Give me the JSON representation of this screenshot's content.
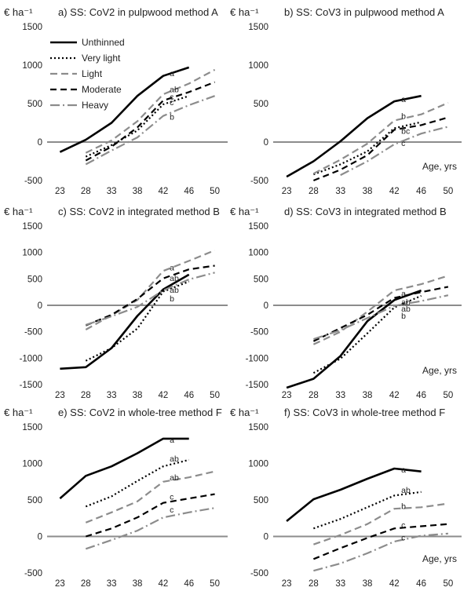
{
  "figure": {
    "ylabel": "€ ha⁻¹",
    "age_label": "Age, yrs"
  },
  "styles": {
    "Unthinned": {
      "color": "#000000",
      "dash": "none"
    },
    "Very light": {
      "color": "#000000",
      "dash": "2,3"
    },
    "Light": {
      "color": "#8c8c8c",
      "dash": "9,5"
    },
    "Moderate": {
      "color": "#000000",
      "dash": "8,5"
    },
    "Heavy": {
      "color": "#8c8c8c",
      "dash": "12,4,2,4"
    }
  },
  "chart_data": [
    {
      "type": "line",
      "title": "a) SS: CoV2 in pulpwood method A",
      "x_ticks": [
        23,
        28,
        33,
        38,
        42,
        46,
        50
      ],
      "y_ticks": [
        -500,
        0,
        500,
        1000,
        1500
      ],
      "ylim": [
        -500,
        1500
      ],
      "legend": {
        "placement": "top-left",
        "entries": [
          "Unthinned",
          "Very light",
          "Light",
          "Moderate",
          "Heavy"
        ]
      },
      "series": [
        {
          "name": "Unthinned",
          "x": [
            23,
            28,
            33,
            38,
            42,
            46
          ],
          "y": [
            -130,
            30,
            250,
            600,
            860,
            970
          ]
        },
        {
          "name": "Very light",
          "x": [
            28,
            33,
            38,
            42,
            46
          ],
          "y": [
            -190,
            -40,
            150,
            490,
            600
          ]
        },
        {
          "name": "Light",
          "x": [
            28,
            33,
            38,
            42,
            46,
            50
          ],
          "y": [
            -140,
            20,
            270,
            620,
            760,
            940
          ]
        },
        {
          "name": "Moderate",
          "x": [
            28,
            33,
            38,
            42,
            46,
            50
          ],
          "y": [
            -240,
            -60,
            190,
            540,
            650,
            780
          ]
        },
        {
          "name": "Heavy",
          "x": [
            28,
            33,
            38,
            42,
            46,
            50
          ],
          "y": [
            -290,
            -110,
            60,
            340,
            480,
            600
          ]
        }
      ],
      "annotations": [
        {
          "text": "a",
          "x": 43.5,
          "y": 900
        },
        {
          "text": "ab",
          "x": 43.5,
          "y": 690
        },
        {
          "text": "c",
          "x": 43.5,
          "y": 590
        },
        {
          "text": "c",
          "x": 43.5,
          "y": 520
        },
        {
          "text": "b",
          "x": 43.5,
          "y": 330
        }
      ]
    },
    {
      "type": "line",
      "title": "b) SS: CoV3 in pulpwood method A",
      "x_ticks": [
        23,
        28,
        33,
        38,
        42,
        46,
        50
      ],
      "y_ticks": [
        -500,
        0,
        500,
        1000,
        1500
      ],
      "ylim": [
        -500,
        1500
      ],
      "show_age_label": true,
      "series": [
        {
          "name": "Unthinned",
          "x": [
            23,
            28,
            33,
            38,
            42,
            46
          ],
          "y": [
            -450,
            -250,
            10,
            310,
            530,
            600
          ]
        },
        {
          "name": "Very light",
          "x": [
            28,
            33,
            38,
            42,
            46
          ],
          "y": [
            -420,
            -290,
            -120,
            180,
            260
          ]
        },
        {
          "name": "Light",
          "x": [
            28,
            33,
            38,
            42,
            46,
            50
          ],
          "y": [
            -410,
            -230,
            -20,
            280,
            360,
            510
          ]
        },
        {
          "name": "Moderate",
          "x": [
            28,
            33,
            38,
            42,
            46,
            50
          ],
          "y": [
            -500,
            -360,
            -170,
            160,
            220,
            320
          ]
        },
        {
          "name": "Heavy",
          "x": [
            33,
            38,
            42,
            46,
            50
          ],
          "y": [
            -430,
            -250,
            -30,
            110,
            200
          ]
        }
      ],
      "annotations": [
        {
          "text": "a",
          "x": 43.5,
          "y": 560
        },
        {
          "text": "b",
          "x": 43.5,
          "y": 340
        },
        {
          "text": "bc",
          "x": 43.5,
          "y": 150
        },
        {
          "text": "c",
          "x": 43.5,
          "y": -10
        }
      ]
    },
    {
      "type": "line",
      "title": "c) SS: CoV2 in integrated method B",
      "x_ticks": [
        23,
        28,
        33,
        38,
        42,
        46,
        50
      ],
      "y_ticks": [
        -1500,
        -1000,
        -500,
        0,
        500,
        1000,
        1500
      ],
      "ylim": [
        -1500,
        1500
      ],
      "series": [
        {
          "name": "Unthinned",
          "x": [
            23,
            28,
            33,
            38,
            42,
            46
          ],
          "y": [
            -1200,
            -1170,
            -810,
            -200,
            300,
            580
          ]
        },
        {
          "name": "Very light",
          "x": [
            28,
            33,
            38,
            42,
            46
          ],
          "y": [
            -1050,
            -810,
            -440,
            260,
            450
          ]
        },
        {
          "name": "Light",
          "x": [
            28,
            33,
            38,
            42,
            46,
            50
          ],
          "y": [
            -460,
            -190,
            100,
            650,
            840,
            1040
          ]
        },
        {
          "name": "Moderate",
          "x": [
            28,
            33,
            38,
            42,
            46,
            50
          ],
          "y": [
            -380,
            -180,
            120,
            510,
            680,
            750
          ]
        },
        {
          "name": "Heavy",
          "x": [
            28,
            33,
            38,
            42,
            46,
            50
          ],
          "y": [
            -370,
            -210,
            -30,
            280,
            490,
            620
          ]
        }
      ],
      "annotations": [
        {
          "text": "a",
          "x": 43.5,
          "y": 720
        },
        {
          "text": "ab",
          "x": 43.5,
          "y": 520
        },
        {
          "text": "ab",
          "x": 43.5,
          "y": 300
        },
        {
          "text": "b",
          "x": 43.5,
          "y": 130
        }
      ]
    },
    {
      "type": "line",
      "title": "d) SS: CoV3 in integrated method B",
      "x_ticks": [
        23,
        28,
        33,
        38,
        42,
        46,
        50
      ],
      "y_ticks": [
        -1500,
        -1000,
        -500,
        0,
        500,
        1000,
        1500
      ],
      "ylim": [
        -1500,
        1500
      ],
      "show_age_label": true,
      "series": [
        {
          "name": "Unthinned",
          "x": [
            23,
            28,
            33,
            38,
            42,
            46
          ],
          "y": [
            -1560,
            -1390,
            -960,
            -300,
            100,
            280
          ]
        },
        {
          "name": "Very light",
          "x": [
            28,
            33,
            38,
            42,
            46
          ],
          "y": [
            -1280,
            -1010,
            -530,
            -40,
            180
          ]
        },
        {
          "name": "Light",
          "x": [
            28,
            33,
            38,
            42,
            46,
            50
          ],
          "y": [
            -740,
            -500,
            -120,
            280,
            400,
            560
          ]
        },
        {
          "name": "Moderate",
          "x": [
            28,
            33,
            38,
            42,
            46,
            50
          ],
          "y": [
            -680,
            -430,
            -180,
            140,
            250,
            350
          ]
        },
        {
          "name": "Heavy",
          "x": [
            28,
            33,
            38,
            42,
            46,
            50
          ],
          "y": [
            -640,
            -470,
            -240,
            -10,
            80,
            190
          ]
        }
      ],
      "annotations": [
        {
          "text": "a",
          "x": 43.5,
          "y": 230
        },
        {
          "text": "ab",
          "x": 43.5,
          "y": 70
        },
        {
          "text": "ab",
          "x": 43.5,
          "y": -60
        },
        {
          "text": "b",
          "x": 43.5,
          "y": -190
        }
      ]
    },
    {
      "type": "line",
      "title": "e) SS: CoV2 in whole-tree method F",
      "x_ticks": [
        23,
        28,
        33,
        38,
        42,
        46,
        50
      ],
      "y_ticks": [
        -500,
        0,
        500,
        1000,
        1500
      ],
      "ylim": [
        -500,
        1500
      ],
      "series": [
        {
          "name": "Unthinned",
          "x": [
            23,
            28,
            33,
            38,
            42,
            46
          ],
          "y": [
            520,
            830,
            960,
            1140,
            1340,
            1340
          ]
        },
        {
          "name": "Very light",
          "x": [
            28,
            33,
            38,
            42,
            46
          ],
          "y": [
            410,
            550,
            760,
            960,
            1050
          ]
        },
        {
          "name": "Light",
          "x": [
            28,
            33,
            38,
            42,
            46,
            50
          ],
          "y": [
            190,
            330,
            480,
            750,
            810,
            890
          ]
        },
        {
          "name": "Moderate",
          "x": [
            28,
            33,
            38,
            42,
            46,
            50
          ],
          "y": [
            0,
            110,
            260,
            460,
            520,
            580
          ]
        },
        {
          "name": "Heavy",
          "x": [
            28,
            33,
            38,
            42,
            46,
            50
          ],
          "y": [
            -170,
            -50,
            80,
            260,
            330,
            390
          ]
        }
      ],
      "annotations": [
        {
          "text": "a",
          "x": 43.5,
          "y": 1330
        },
        {
          "text": "ab",
          "x": 43.5,
          "y": 1070
        },
        {
          "text": "ab",
          "x": 43.5,
          "y": 810
        },
        {
          "text": "c",
          "x": 43.5,
          "y": 550
        },
        {
          "text": "c",
          "x": 43.5,
          "y": 370
        }
      ]
    },
    {
      "type": "line",
      "title": "f) SS: CoV3 in whole-tree method F",
      "x_ticks": [
        23,
        28,
        33,
        38,
        42,
        46,
        50
      ],
      "y_ticks": [
        -500,
        0,
        500,
        1000,
        1500
      ],
      "ylim": [
        -500,
        1500
      ],
      "show_age_label": true,
      "series": [
        {
          "name": "Unthinned",
          "x": [
            23,
            28,
            33,
            38,
            42,
            46
          ],
          "y": [
            210,
            510,
            640,
            790,
            930,
            890
          ]
        },
        {
          "name": "Very light",
          "x": [
            28,
            33,
            38,
            42,
            46
          ],
          "y": [
            110,
            240,
            400,
            560,
            610
          ]
        },
        {
          "name": "Light",
          "x": [
            28,
            33,
            38,
            42,
            46,
            50
          ],
          "y": [
            -110,
            20,
            170,
            380,
            400,
            450
          ]
        },
        {
          "name": "Moderate",
          "x": [
            28,
            33,
            38,
            42,
            46,
            50
          ],
          "y": [
            -310,
            -160,
            -20,
            110,
            140,
            170
          ]
        },
        {
          "name": "Heavy",
          "x": [
            28,
            33,
            38,
            42,
            46,
            50
          ],
          "y": [
            -470,
            -370,
            -230,
            -70,
            10,
            40
          ]
        }
      ],
      "annotations": [
        {
          "text": "a",
          "x": 43.5,
          "y": 920
        },
        {
          "text": "ab",
          "x": 43.5,
          "y": 640
        },
        {
          "text": "b",
          "x": 43.5,
          "y": 420
        },
        {
          "text": "c",
          "x": 43.5,
          "y": 160
        },
        {
          "text": "c",
          "x": 43.5,
          "y": -10
        }
      ]
    }
  ]
}
